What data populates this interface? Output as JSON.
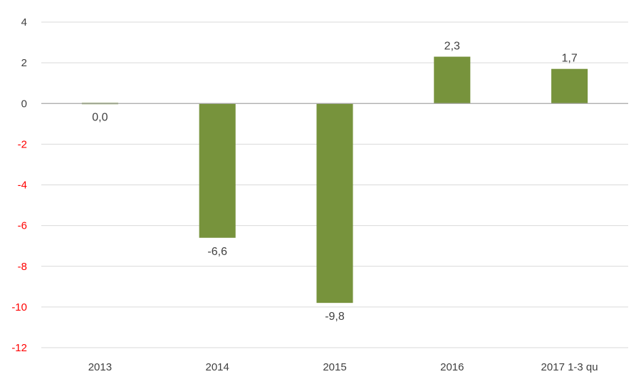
{
  "chart_data": {
    "type": "bar",
    "categories": [
      "2013",
      "2014",
      "2015",
      "2016",
      "2017 1-3 qu"
    ],
    "values": [
      0.0,
      -6.6,
      -9.8,
      2.3,
      1.7
    ],
    "data_labels": [
      "0,0",
      "-6,6",
      "-9,8",
      "2,3",
      "1,7"
    ],
    "yticks": [
      4,
      2,
      0,
      -2,
      -4,
      -6,
      -8,
      -10,
      -12
    ],
    "ylim": [
      -12,
      4
    ],
    "title": "",
    "xlabel": "",
    "ylabel": "",
    "grid": true,
    "legend": "none",
    "colors": {
      "bar": "#77933c",
      "positive_tick": "#404040",
      "negative_tick": "#ff0000"
    }
  }
}
